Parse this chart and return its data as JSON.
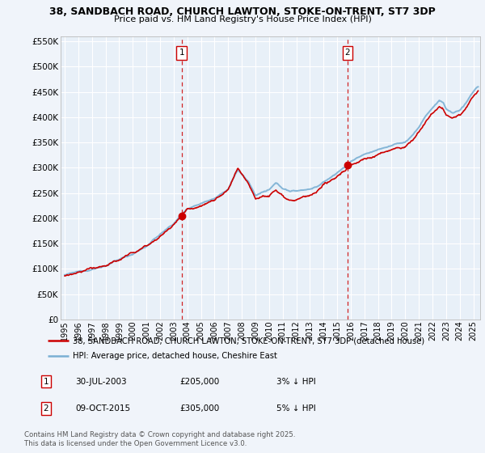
{
  "title": "38, SANDBACH ROAD, CHURCH LAWTON, STOKE-ON-TRENT, ST7 3DP",
  "subtitle": "Price paid vs. HM Land Registry's House Price Index (HPI)",
  "ylim": [
    0,
    550000
  ],
  "ytick_max": 550000,
  "ytick_step": 50000,
  "xlim_start": 1994.7,
  "xlim_end": 2025.5,
  "bg_color": "#f0f4fa",
  "plot_bg_color": "#e8f0f8",
  "grid_color": "#ffffff",
  "line_red_color": "#cc0000",
  "line_blue_color": "#7ab0d4",
  "vline_color": "#cc0000",
  "marker1_x": 2003.58,
  "marker2_x": 2015.77,
  "dot1_y": 205000,
  "dot2_y": 305000,
  "legend_line1": "38, SANDBACH ROAD, CHURCH LAWTON, STOKE-ON-TRENT, ST7 3DP (detached house)",
  "legend_line2": "HPI: Average price, detached house, Cheshire East",
  "annot1_num": "1",
  "annot1_date": "30-JUL-2003",
  "annot1_price": "£205,000",
  "annot1_hpi": "3% ↓ HPI",
  "annot2_num": "2",
  "annot2_date": "09-OCT-2015",
  "annot2_price": "£305,000",
  "annot2_hpi": "5% ↓ HPI",
  "footer": "Contains HM Land Registry data © Crown copyright and database right 2025.\nThis data is licensed under the Open Government Licence v3.0."
}
